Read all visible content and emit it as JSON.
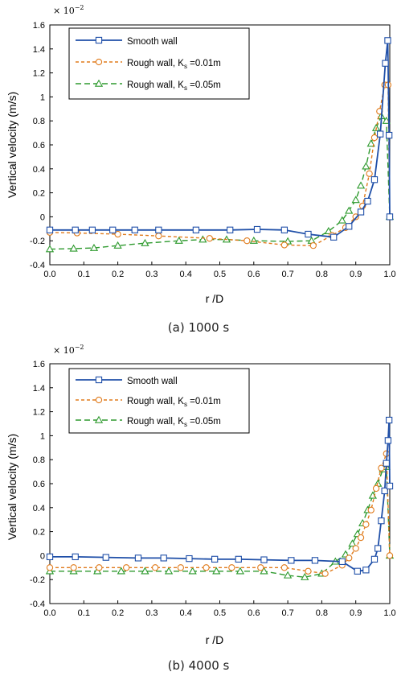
{
  "chart_data": [
    {
      "type": "line",
      "caption": "(a)  1000  s",
      "xlabel": "r /D",
      "ylabel": "Vertical velocity (m/s)",
      "y_multiplier": "× 10",
      "y_multiplier_exp": "−2",
      "xlim": [
        0.0,
        1.0
      ],
      "ylim": [
        -0.4,
        1.6
      ],
      "x_ticks": [
        "0.0",
        "0.1",
        "0.2",
        "0.3",
        "0.4",
        "0.5",
        "0.6",
        "0.7",
        "0.8",
        "0.9",
        "1.0"
      ],
      "y_ticks": [
        "-0.4",
        "-0.2",
        "0",
        "0.2",
        "0.4",
        "0.6",
        "0.8",
        "1",
        "1.2",
        "1.4",
        "1.6"
      ],
      "legend_position": "top-left",
      "series": [
        {
          "name": "Smooth wall",
          "color": "#1f4fa8",
          "marker": "square",
          "dash": "solid",
          "x": [
            0.0,
            0.075,
            0.125,
            0.185,
            0.25,
            0.32,
            0.43,
            0.53,
            0.61,
            0.69,
            0.76,
            0.835,
            0.88,
            0.915,
            0.935,
            0.955,
            0.972,
            0.987,
            0.994,
            0.998,
            1.0
          ],
          "y": [
            -0.11,
            -0.11,
            -0.11,
            -0.11,
            -0.11,
            -0.11,
            -0.11,
            -0.11,
            -0.105,
            -0.11,
            -0.145,
            -0.17,
            -0.08,
            0.04,
            0.13,
            0.31,
            0.69,
            1.28,
            1.47,
            0.68,
            0.0
          ]
        },
        {
          "name": "Rough wall, K_s =0.01m",
          "legend_main": "Rough wall, K",
          "legend_sub": "s",
          "legend_tail": " =0.01m",
          "color": "#e07b1c",
          "marker": "circle",
          "dash": "short-dash",
          "x": [
            0.0,
            0.08,
            0.2,
            0.32,
            0.47,
            0.58,
            0.69,
            0.775,
            0.83,
            0.87,
            0.9,
            0.92,
            0.94,
            0.955,
            0.97,
            0.985,
            0.995,
            1.0
          ],
          "y": [
            -0.13,
            -0.135,
            -0.145,
            -0.16,
            -0.18,
            -0.2,
            -0.235,
            -0.24,
            -0.155,
            -0.09,
            0.0,
            0.09,
            0.36,
            0.66,
            0.88,
            1.1,
            1.1,
            0.0
          ]
        },
        {
          "name": "Rough wall, K_s =0.05m",
          "legend_main": "Rough wall, K",
          "legend_sub": "s",
          "legend_tail": " =0.05m",
          "color": "#2e9a2e",
          "marker": "triangle",
          "dash": "long-dash",
          "x": [
            0.0,
            0.07,
            0.13,
            0.2,
            0.28,
            0.38,
            0.45,
            0.52,
            0.6,
            0.7,
            0.77,
            0.82,
            0.86,
            0.88,
            0.9,
            0.915,
            0.93,
            0.945,
            0.96,
            0.975,
            0.99,
            1.0
          ],
          "y": [
            -0.27,
            -0.265,
            -0.26,
            -0.24,
            -0.22,
            -0.2,
            -0.19,
            -0.19,
            -0.2,
            -0.205,
            -0.2,
            -0.12,
            -0.03,
            0.05,
            0.14,
            0.26,
            0.42,
            0.61,
            0.74,
            0.84,
            0.8,
            0.0
          ]
        }
      ]
    },
    {
      "type": "line",
      "caption": "(b)  4000  s",
      "xlabel": "r /D",
      "ylabel": "Vertical velocity (m/s)",
      "y_multiplier": "× 10",
      "y_multiplier_exp": "−2",
      "xlim": [
        0.0,
        1.0
      ],
      "ylim": [
        -0.4,
        1.6
      ],
      "x_ticks": [
        "0.0",
        "0.1",
        "0.2",
        "0.3",
        "0.4",
        "0.5",
        "0.6",
        "0.7",
        "0.8",
        "0.9",
        "1.0"
      ],
      "y_ticks": [
        "-0.4",
        "-0.2",
        "0",
        "0.2",
        "0.4",
        "0.6",
        "0.8",
        "1",
        "1.2",
        "1.4",
        "1.6"
      ],
      "legend_position": "top-left",
      "series": [
        {
          "name": "Smooth wall",
          "color": "#1f4fa8",
          "marker": "square",
          "dash": "solid",
          "x": [
            0.0,
            0.075,
            0.165,
            0.26,
            0.335,
            0.41,
            0.485,
            0.555,
            0.63,
            0.71,
            0.78,
            0.86,
            0.905,
            0.93,
            0.955,
            0.965,
            0.975,
            0.985,
            0.99,
            0.995,
            0.998,
            1.0
          ],
          "y": [
            -0.01,
            -0.01,
            -0.015,
            -0.02,
            -0.02,
            -0.025,
            -0.03,
            -0.03,
            -0.035,
            -0.04,
            -0.04,
            -0.05,
            -0.13,
            -0.12,
            -0.03,
            0.06,
            0.29,
            0.54,
            0.77,
            0.96,
            1.13,
            0.58
          ]
        },
        {
          "name": "Rough wall, K_s =0.01m",
          "legend_main": "Rough wall, K",
          "legend_sub": "s",
          "legend_tail": " =0.01m",
          "color": "#e07b1c",
          "marker": "circle",
          "dash": "short-dash",
          "x": [
            0.0,
            0.07,
            0.145,
            0.225,
            0.31,
            0.385,
            0.46,
            0.535,
            0.62,
            0.69,
            0.76,
            0.81,
            0.86,
            0.88,
            0.9,
            0.915,
            0.93,
            0.945,
            0.96,
            0.975,
            0.99,
            1.0
          ],
          "y": [
            -0.1,
            -0.1,
            -0.1,
            -0.1,
            -0.1,
            -0.1,
            -0.1,
            -0.1,
            -0.1,
            -0.1,
            -0.13,
            -0.15,
            -0.08,
            -0.02,
            0.06,
            0.15,
            0.26,
            0.38,
            0.56,
            0.73,
            0.85,
            0.0
          ]
        },
        {
          "name": "Rough wall, K_s =0.05m",
          "legend_main": "Rough wall, K",
          "legend_sub": "s",
          "legend_tail": " =0.05m",
          "color": "#2e9a2e",
          "marker": "triangle",
          "dash": "long-dash",
          "x": [
            0.0,
            0.07,
            0.14,
            0.21,
            0.28,
            0.35,
            0.42,
            0.49,
            0.56,
            0.63,
            0.7,
            0.75,
            0.8,
            0.84,
            0.87,
            0.89,
            0.905,
            0.92,
            0.935,
            0.95,
            0.965,
            0.98,
            0.99,
            1.0
          ],
          "y": [
            -0.13,
            -0.13,
            -0.13,
            -0.13,
            -0.13,
            -0.13,
            -0.13,
            -0.13,
            -0.13,
            -0.13,
            -0.165,
            -0.18,
            -0.15,
            -0.05,
            0.01,
            0.1,
            0.18,
            0.27,
            0.38,
            0.5,
            0.6,
            0.72,
            0.74,
            0.0
          ]
        }
      ]
    }
  ]
}
